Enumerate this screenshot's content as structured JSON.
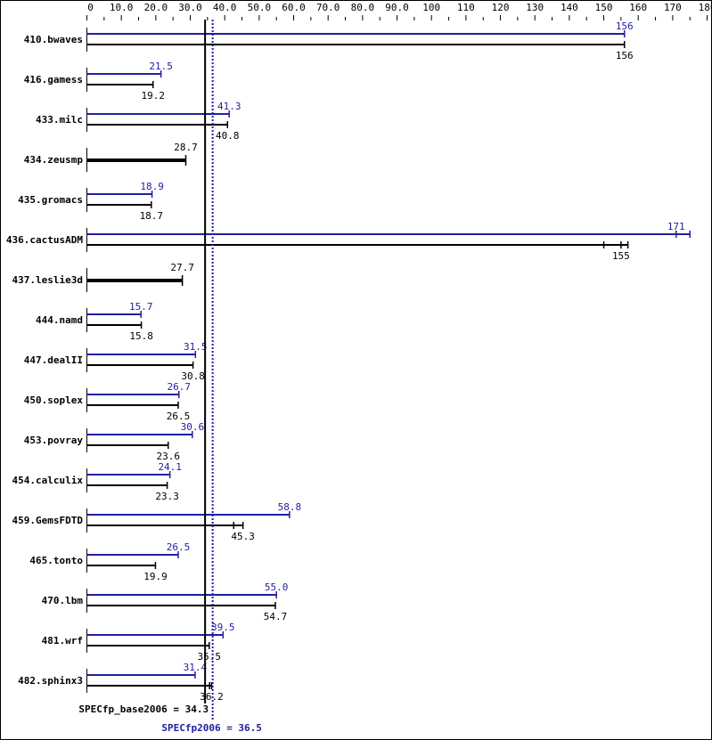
{
  "chart_data": {
    "type": "bar",
    "orientation": "horizontal",
    "xlim": [
      0,
      180
    ],
    "ticks": [
      {
        "v": 0,
        "label": "0"
      },
      {
        "v": 10,
        "label": "10.0"
      },
      {
        "v": 20,
        "label": "20.0"
      },
      {
        "v": 30,
        "label": "30.0"
      },
      {
        "v": 40,
        "label": "40.0"
      },
      {
        "v": 50,
        "label": "50.0"
      },
      {
        "v": 60,
        "label": "60.0"
      },
      {
        "v": 70,
        "label": "70.0"
      },
      {
        "v": 80,
        "label": "80.0"
      },
      {
        "v": 90,
        "label": "90.0"
      },
      {
        "v": 100,
        "label": "100"
      },
      {
        "v": 110,
        "label": "110"
      },
      {
        "v": 120,
        "label": "120"
      },
      {
        "v": 130,
        "label": "130"
      },
      {
        "v": 140,
        "label": "140"
      },
      {
        "v": 150,
        "label": "150"
      },
      {
        "v": 160,
        "label": "160"
      },
      {
        "v": 170,
        "label": "170"
      },
      {
        "v": 180,
        "label": "180"
      }
    ],
    "colors": {
      "peak": "#2020a0",
      "base": "#000000"
    },
    "categories": [
      {
        "name": "410.bwaves",
        "peak": 156,
        "peak_label": "156",
        "base": 156,
        "base_label": "156"
      },
      {
        "name": "416.gamess",
        "peak": 21.5,
        "peak_label": "21.5",
        "base": 19.2,
        "base_label": "19.2"
      },
      {
        "name": "433.milc",
        "peak": 41.3,
        "peak_label": "41.3",
        "base": 40.8,
        "base_label": "40.8"
      },
      {
        "name": "434.zeusmp",
        "base": 28.7,
        "base_label": "28.7",
        "base_only": true
      },
      {
        "name": "435.gromacs",
        "peak": 18.9,
        "peak_label": "18.9",
        "base": 18.7,
        "base_label": "18.7"
      },
      {
        "name": "436.cactusADM",
        "peak": 171,
        "peak_label": "171",
        "peak_runs": [
          175
        ],
        "base": 155,
        "base_label": "155",
        "base_runs": [
          150,
          157
        ]
      },
      {
        "name": "437.leslie3d",
        "base": 27.7,
        "base_label": "27.7",
        "base_only": true
      },
      {
        "name": "444.namd",
        "peak": 15.7,
        "peak_label": "15.7",
        "base": 15.8,
        "base_label": "15.8"
      },
      {
        "name": "447.dealII",
        "peak": 31.5,
        "peak_label": "31.5",
        "base": 30.8,
        "base_label": "30.8"
      },
      {
        "name": "450.soplex",
        "peak": 26.7,
        "peak_label": "26.7",
        "base": 26.5,
        "base_label": "26.5"
      },
      {
        "name": "453.povray",
        "peak": 30.6,
        "peak_label": "30.6",
        "base": 23.6,
        "base_label": "23.6"
      },
      {
        "name": "454.calculix",
        "peak": 24.1,
        "peak_label": "24.1",
        "base": 23.3,
        "base_label": "23.3"
      },
      {
        "name": "459.GemsFDTD",
        "peak": 58.8,
        "peak_label": "58.8",
        "base": 45.3,
        "base_label": "45.3",
        "base_runs": [
          42.6
        ]
      },
      {
        "name": "465.tonto",
        "peak": 26.5,
        "peak_label": "26.5",
        "base": 19.9,
        "base_label": "19.9"
      },
      {
        "name": "470.lbm",
        "peak": 55.0,
        "peak_label": "55.0",
        "base": 54.7,
        "base_label": "54.7"
      },
      {
        "name": "481.wrf",
        "peak": 39.5,
        "peak_label": "39.5",
        "base": 35.5,
        "base_label": "35.5"
      },
      {
        "name": "482.sphinx3",
        "peak": 31.4,
        "peak_label": "31.4",
        "base": 36.2,
        "base_label": "36.2",
        "base_runs": [
          35.6
        ]
      }
    ],
    "base_mean": {
      "value": 34.3,
      "label": "SPECfp_base2006 = 34.3"
    },
    "peak_mean": {
      "value": 36.5,
      "label": "SPECfp2006 = 36.5"
    }
  }
}
